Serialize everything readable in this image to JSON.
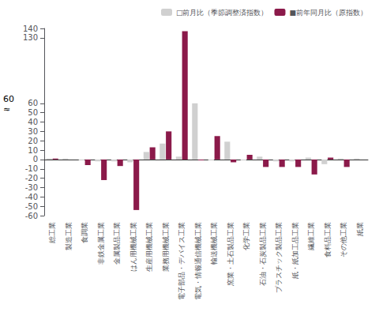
{
  "chart_data": {
    "type": "bar",
    "categories": [
      "総工業",
      "製造工業",
      "食調業",
      "非鉄金属工業",
      "金属製品工業",
      "はん用機械工業",
      "生産用機械工業",
      "業務用機械工業",
      "電子部品・デバイス工業",
      "電気・情報通信機械工業",
      "輸送機械工業",
      "窯業・土石製品工業",
      "化学工業",
      "石油・石炭製品工業",
      "プラスチック製品工業",
      "紙・紙加工品工業",
      "繊維工業",
      "食料品工業",
      "その他工業",
      "紙業"
    ],
    "series": [
      {
        "name": "□前月比（季節調整済指数）",
        "color": "#d0d0d0",
        "values": [
          1,
          1,
          -1,
          -2,
          -2,
          -3,
          8,
          17,
          3,
          60,
          -1,
          19,
          -1,
          3,
          -2,
          -2,
          2,
          -5,
          1,
          1
        ]
      },
      {
        "name": "■前年同月比（原指数）",
        "color": "#8b1a4a",
        "values": [
          1,
          0,
          -6,
          -22,
          -7,
          -54,
          13,
          30,
          137,
          -1,
          25,
          -3,
          5,
          -8,
          -8,
          -8,
          -16,
          2,
          -8,
          0
        ]
      }
    ],
    "ylim": [
      -60,
      140
    ],
    "yticks": [
      -60,
      -50,
      -40,
      -30,
      -20,
      -10,
      0,
      10,
      20,
      30,
      40,
      50,
      60,
      130,
      140
    ],
    "grid": false,
    "legend": "upper right",
    "annotations": [
      {
        "text": "60",
        "y": 63
      },
      {
        "text": "≈",
        "y": 63
      }
    ]
  }
}
